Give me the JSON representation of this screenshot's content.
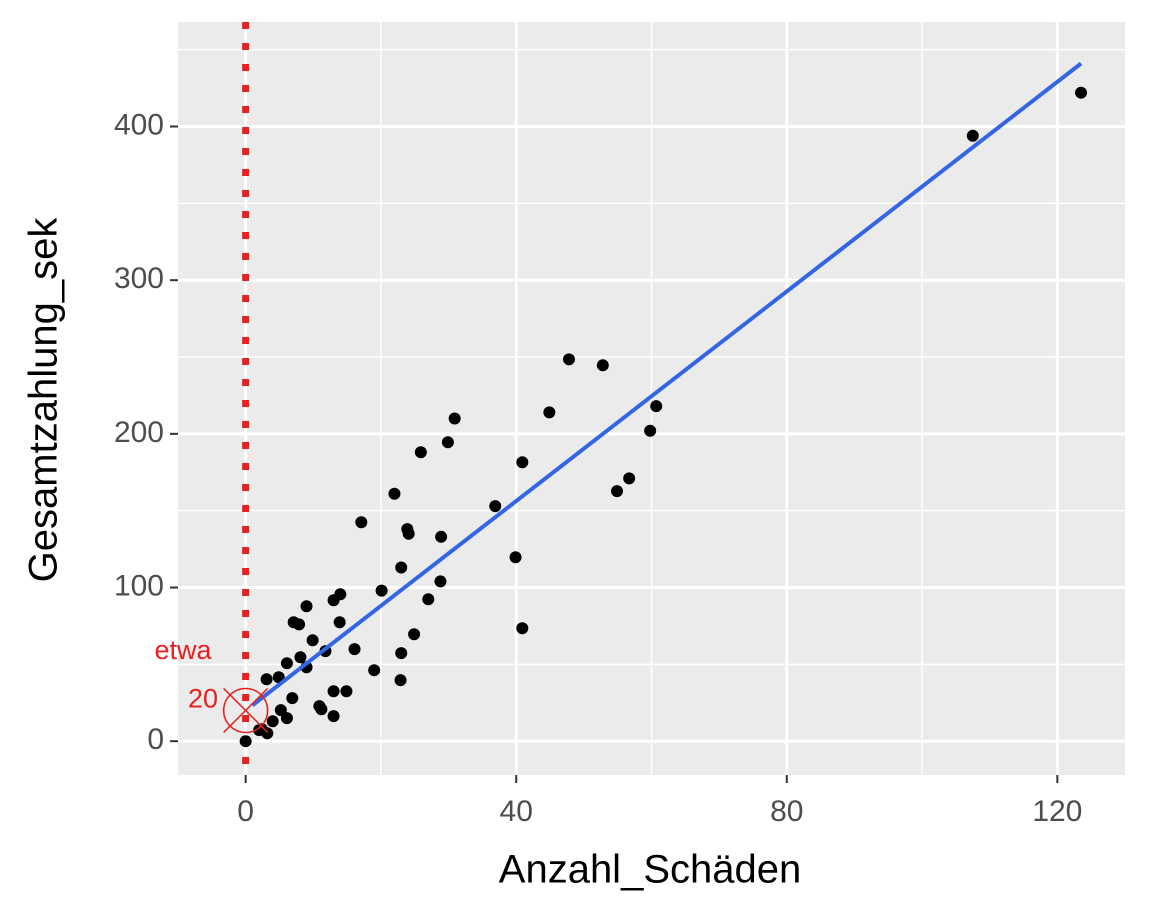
{
  "chart_data": {
    "type": "scatter",
    "x_label": "Anzahl_Schäden",
    "y_label": "Gesamtzahlung_sek",
    "xlim": [
      -10,
      130
    ],
    "ylim": [
      -22,
      468
    ],
    "xticks": [
      0,
      40,
      80,
      120
    ],
    "yticks": [
      0,
      100,
      200,
      300,
      400
    ],
    "xgrid_minor": [
      20,
      60,
      100
    ],
    "ygrid_minor": [
      50,
      150,
      250,
      350,
      450
    ],
    "grid": true,
    "panel_color": "#ebebeb",
    "series": [
      {
        "color": "#000000",
        "x": [
          0,
          123.5,
          107.5,
          47.8,
          52.8,
          60.7,
          59.8,
          44.9,
          30.9,
          29.9,
          25.9,
          40.9,
          56.7,
          54.9,
          22,
          36.9,
          17.1,
          23.9,
          24.1,
          28.9,
          39.9,
          23,
          28.8,
          20.1,
          14,
          13,
          27,
          9,
          7.1,
          7.9,
          13.9,
          40.9,
          24.9,
          9.9,
          11.8,
          16.1,
          8.1,
          6.1,
          23,
          9,
          19,
          4.9,
          3.1,
          22.9,
          14.9,
          13,
          6.9,
          10.9,
          11.2,
          5.2,
          13,
          6.1,
          4,
          2.4,
          3.2,
          2
        ],
        "values": [
          0,
          422,
          394,
          248.5,
          244.6,
          218,
          202,
          214,
          210,
          194.5,
          188,
          181.5,
          171,
          162.7,
          161,
          153,
          142.5,
          138,
          135,
          133,
          119.7,
          113,
          104,
          98,
          95.6,
          91.7,
          92.4,
          87.8,
          77.4,
          76,
          77.4,
          73.5,
          69.6,
          65.7,
          58.6,
          59.9,
          54.6,
          50.7,
          57.3,
          48.1,
          46.2,
          41.6,
          40.3,
          39.7,
          32.5,
          32.5,
          28,
          22.8,
          20.8,
          20.2,
          16.3,
          15,
          13,
          7.8,
          5.2,
          7.2
        ]
      }
    ],
    "fit": {
      "color": "#3366e6",
      "x": [
        1,
        123.5
      ],
      "values": [
        23.3,
        441
      ]
    },
    "vline": {
      "x": 0,
      "color": "#e8201e"
    },
    "annotation": {
      "text": "etwa",
      "value": 20,
      "x": 0,
      "color": "#e8201e"
    }
  }
}
